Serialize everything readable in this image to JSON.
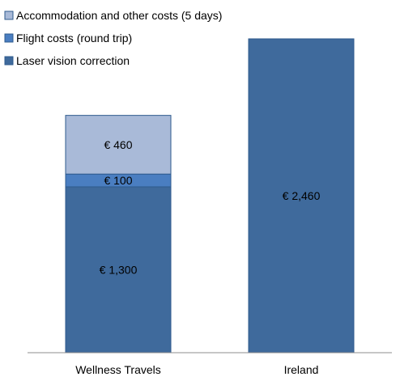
{
  "chart_data": {
    "type": "bar",
    "stacked": true,
    "title": "",
    "xlabel": "",
    "ylabel": "",
    "categories": [
      "Wellness Travels",
      "Ireland"
    ],
    "series": [
      {
        "name": "Laser vision correction",
        "color": "#3f6a9c",
        "values": [
          1300,
          2460
        ],
        "labels": [
          "€ 1,300",
          "€ 2,460"
        ]
      },
      {
        "name": "Flight costs (round trip)",
        "color": "#4a7ec1",
        "values": [
          100,
          null
        ],
        "labels": [
          "€ 100",
          ""
        ]
      },
      {
        "name": "Accommodation and other costs (5 days)",
        "color": "#a9bad8",
        "values": [
          460,
          null
        ],
        "labels": [
          "€ 460",
          ""
        ]
      }
    ],
    "ylim": [
      0,
      2460
    ],
    "grid": false,
    "legend_position": "top-left",
    "legend_order": [
      "Accommodation and other costs (5 days)",
      "Flight costs (round trip)",
      "Laser vision correction"
    ]
  }
}
